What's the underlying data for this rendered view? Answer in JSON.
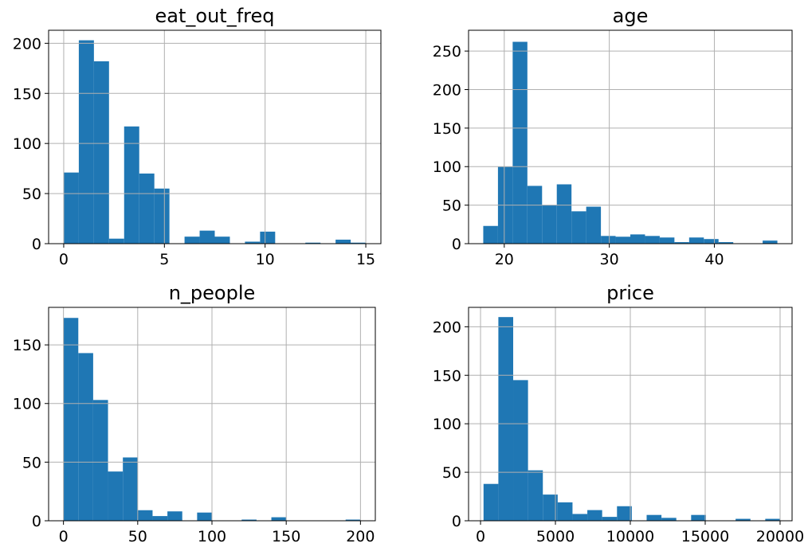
{
  "chart_data": [
    {
      "type": "histogram",
      "title": "eat_out_freq",
      "xlim": [
        -0.75,
        15.75
      ],
      "ylim": [
        0,
        213
      ],
      "xticks": [
        0,
        5,
        10,
        15
      ],
      "xtick_labels": [
        "0",
        "5",
        "10",
        "15"
      ],
      "yticks": [
        0,
        50,
        100,
        150,
        200
      ],
      "ytick_labels": [
        "0",
        "50",
        "100",
        "150",
        "200"
      ],
      "bin_edges": [
        0,
        0.75,
        1.5,
        2.25,
        3,
        3.75,
        4.5,
        5.25,
        6,
        6.75,
        7.5,
        8.25,
        9,
        9.75,
        10.5,
        11.25,
        12,
        12.75,
        13.5,
        14.25,
        15
      ],
      "counts": [
        71,
        203,
        182,
        5,
        117,
        70,
        55,
        0,
        7,
        13,
        7,
        0,
        2,
        12,
        0,
        0,
        1,
        0,
        4,
        1
      ],
      "color": "#1f77b4",
      "grid": true
    },
    {
      "type": "histogram",
      "title": "age",
      "xlim": [
        16.6,
        47.4
      ],
      "ylim": [
        0,
        277
      ],
      "xticks": [
        20,
        30,
        40
      ],
      "xtick_labels": [
        "20",
        "30",
        "40"
      ],
      "yticks": [
        0,
        50,
        100,
        150,
        200,
        250
      ],
      "ytick_labels": [
        "0",
        "50",
        "100",
        "150",
        "200",
        "250"
      ],
      "bin_edges": [
        18,
        19.4,
        20.8,
        22.2,
        23.6,
        25,
        26.4,
        27.8,
        29.2,
        30.6,
        32,
        33.4,
        34.8,
        36.2,
        37.6,
        39,
        40.4,
        41.8,
        43.2,
        44.6,
        46
      ],
      "counts": [
        23,
        100,
        262,
        75,
        50,
        77,
        42,
        48,
        10,
        9,
        12,
        10,
        8,
        2,
        8,
        6,
        2,
        0,
        0,
        4
      ],
      "color": "#1f77b4",
      "grid": true
    },
    {
      "type": "histogram",
      "title": "n_people",
      "xlim": [
        -10,
        210
      ],
      "ylim": [
        0,
        182
      ],
      "xticks": [
        0,
        50,
        100,
        150,
        200
      ],
      "xtick_labels": [
        "0",
        "50",
        "100",
        "150",
        "200"
      ],
      "yticks": [
        0,
        50,
        100,
        150
      ],
      "ytick_labels": [
        "0",
        "50",
        "100",
        "150"
      ],
      "bin_edges": [
        0,
        10,
        20,
        30,
        40,
        50,
        60,
        70,
        80,
        90,
        100,
        110,
        120,
        130,
        140,
        150,
        160,
        170,
        180,
        190,
        200
      ],
      "counts": [
        173,
        143,
        103,
        42,
        54,
        9,
        4,
        8,
        0,
        7,
        0,
        0,
        1,
        0,
        3,
        0,
        0,
        0,
        0,
        1
      ],
      "color": "#1f77b4",
      "grid": true
    },
    {
      "type": "histogram",
      "title": "price",
      "xlim": [
        -800,
        20800
      ],
      "ylim": [
        0,
        220
      ],
      "xticks": [
        0,
        5000,
        10000,
        15000,
        20000
      ],
      "xtick_labels": [
        "0",
        "5000",
        "10000",
        "15000",
        "20000"
      ],
      "yticks": [
        0,
        50,
        100,
        150,
        200
      ],
      "ytick_labels": [
        "0",
        "50",
        "100",
        "150",
        "200"
      ],
      "bin_edges": [
        200,
        1190,
        2180,
        3170,
        4160,
        5150,
        6140,
        7130,
        8120,
        9110,
        10100,
        11090,
        12080,
        13070,
        14060,
        15050,
        16040,
        17030,
        18020,
        19010,
        20000
      ],
      "counts": [
        38,
        210,
        145,
        52,
        27,
        19,
        7,
        11,
        4,
        15,
        0,
        6,
        3,
        0,
        6,
        0,
        0,
        2,
        0,
        2
      ],
      "color": "#1f77b4",
      "grid": true
    }
  ]
}
